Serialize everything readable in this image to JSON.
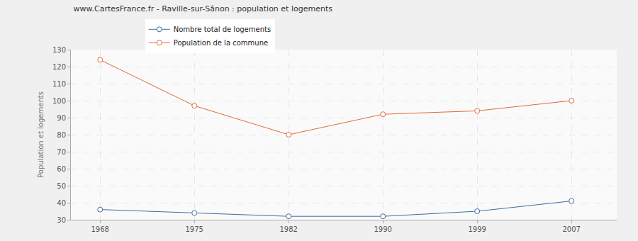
{
  "chart_data": {
    "type": "line",
    "title": "www.CartesFrance.fr - Raville-sur-Sânon : population et logements",
    "y_label": "Population et logements",
    "categories": [
      "1968",
      "1975",
      "1982",
      "1990",
      "1999",
      "2007"
    ],
    "series": [
      {
        "name": "Nombre total de logements",
        "color": "#3e6d9f",
        "marker": "circle",
        "values": [
          36,
          34,
          32,
          32,
          35,
          41
        ]
      },
      {
        "name": "Population de la commune",
        "color": "#e06a3a",
        "marker": "circle",
        "values": [
          124,
          97,
          80,
          92,
          94,
          100
        ]
      }
    ],
    "ylim": [
      30,
      130
    ],
    "yticks": [
      30,
      40,
      50,
      60,
      70,
      80,
      90,
      100,
      110,
      120,
      130
    ],
    "grid": true,
    "legend": "top"
  }
}
